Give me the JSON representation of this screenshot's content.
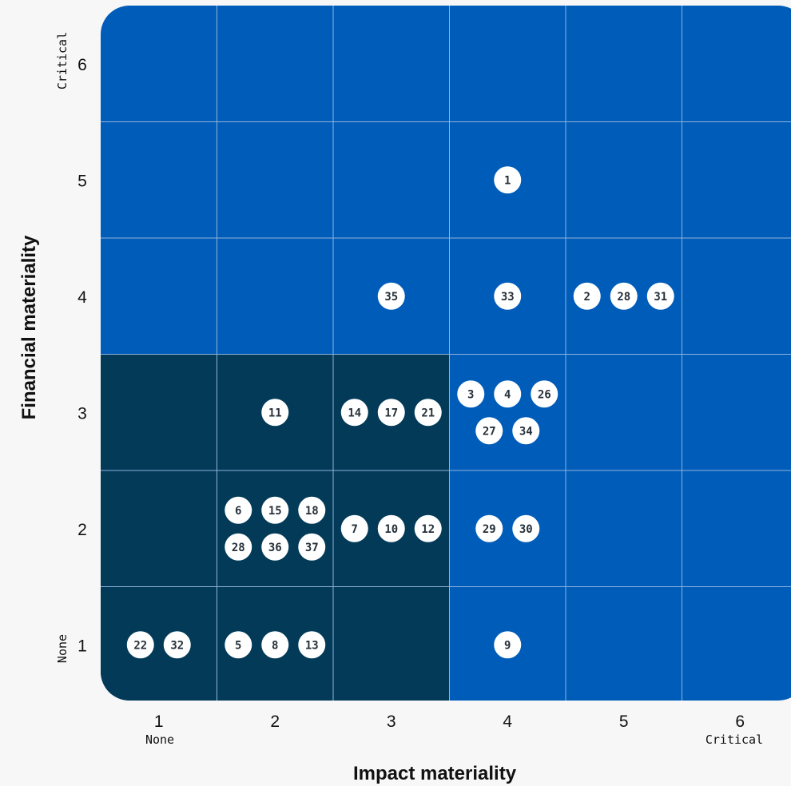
{
  "chart_data": {
    "type": "scatter",
    "xlabel": "Impact materiality",
    "ylabel": "Financial materiality",
    "x_ticks": [
      "1",
      "2",
      "3",
      "4",
      "5",
      "6"
    ],
    "y_ticks": [
      "1",
      "2",
      "3",
      "4",
      "5",
      "6"
    ],
    "x_end_labels": {
      "low": "None",
      "high": "Critical"
    },
    "y_end_labels": {
      "low": "None",
      "high": "Critical"
    },
    "xlim": [
      1,
      6
    ],
    "ylim": [
      1,
      6
    ],
    "grid": true,
    "colors": {
      "high_zone": "#005cb9",
      "low_zone": "#023a58",
      "grid_line": "#8fb3dc",
      "marker": "#ffffff",
      "marker_text": "#26303a",
      "background": "#f7f7f7"
    },
    "low_zone_cells": [
      {
        "x": 1,
        "y": 1
      },
      {
        "x": 2,
        "y": 1
      },
      {
        "x": 3,
        "y": 1
      },
      {
        "x": 1,
        "y": 2
      },
      {
        "x": 2,
        "y": 2
      },
      {
        "x": 3,
        "y": 2
      },
      {
        "x": 1,
        "y": 3
      },
      {
        "x": 2,
        "y": 3
      },
      {
        "x": 3,
        "y": 3
      }
    ],
    "cells": [
      {
        "x": 4,
        "y": 5,
        "rows": [
          [
            "1"
          ]
        ]
      },
      {
        "x": 3,
        "y": 4,
        "rows": [
          [
            "35"
          ]
        ]
      },
      {
        "x": 4,
        "y": 4,
        "rows": [
          [
            "33"
          ]
        ]
      },
      {
        "x": 5,
        "y": 4,
        "rows": [
          [
            "2",
            "28",
            "31"
          ]
        ]
      },
      {
        "x": 2,
        "y": 3,
        "rows": [
          [
            "11"
          ]
        ]
      },
      {
        "x": 3,
        "y": 3,
        "rows": [
          [
            "14",
            "17",
            "21"
          ]
        ]
      },
      {
        "x": 4,
        "y": 3,
        "rows": [
          [
            "3",
            "4",
            "26"
          ],
          [
            "27",
            "34"
          ]
        ]
      },
      {
        "x": 2,
        "y": 2,
        "rows": [
          [
            "6",
            "15",
            "18"
          ],
          [
            "28",
            "36",
            "37"
          ]
        ]
      },
      {
        "x": 3,
        "y": 2,
        "rows": [
          [
            "7",
            "10",
            "12"
          ]
        ]
      },
      {
        "x": 4,
        "y": 2,
        "rows": [
          [
            "29",
            "30"
          ]
        ]
      },
      {
        "x": 1,
        "y": 1,
        "rows": [
          [
            "22",
            "32"
          ]
        ]
      },
      {
        "x": 2,
        "y": 1,
        "rows": [
          [
            "5",
            "8",
            "13"
          ]
        ]
      },
      {
        "x": 4,
        "y": 1,
        "rows": [
          [
            "9"
          ]
        ]
      }
    ]
  }
}
